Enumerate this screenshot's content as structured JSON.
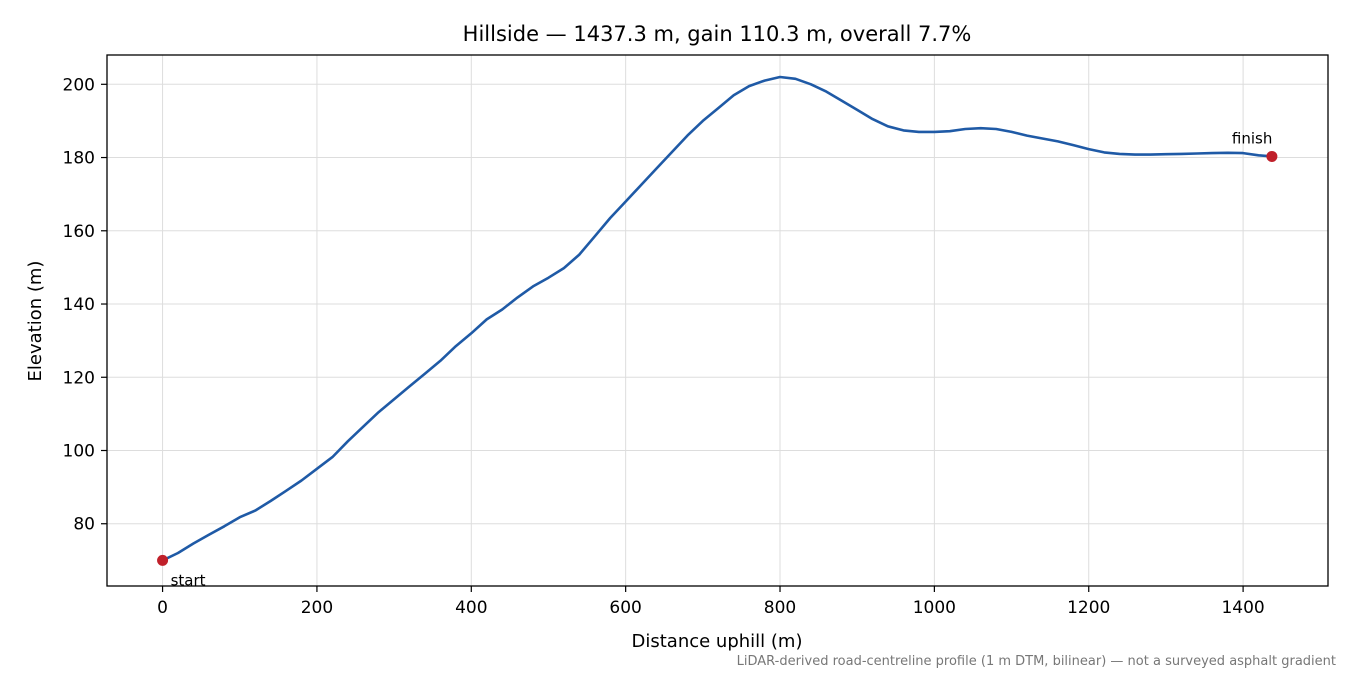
{
  "chart_data": {
    "type": "line",
    "title": "Hillside — 1437.3 m, gain 110.3 m, overall 7.7%",
    "xlabel": "Distance uphill (m)",
    "ylabel": "Elevation (m)",
    "xlim": [
      -72,
      1510
    ],
    "ylim": [
      63,
      208
    ],
    "x_ticks": [
      0,
      200,
      400,
      600,
      800,
      1000,
      1200,
      1400
    ],
    "y_ticks": [
      80,
      100,
      120,
      140,
      160,
      180,
      200
    ],
    "grid": true,
    "series": [
      {
        "color": "#1f5aa6",
        "points": [
          [
            0,
            70
          ],
          [
            20,
            72
          ],
          [
            40,
            74.6
          ],
          [
            60,
            77
          ],
          [
            80,
            79.3
          ],
          [
            100,
            81.8
          ],
          [
            120,
            83.6
          ],
          [
            140,
            86.2
          ],
          [
            160,
            89
          ],
          [
            180,
            91.8
          ],
          [
            200,
            95
          ],
          [
            220,
            98.2
          ],
          [
            240,
            102.5
          ],
          [
            260,
            106.5
          ],
          [
            280,
            110.5
          ],
          [
            300,
            114
          ],
          [
            320,
            117.5
          ],
          [
            340,
            121
          ],
          [
            360,
            124.5
          ],
          [
            380,
            128.5
          ],
          [
            400,
            132
          ],
          [
            420,
            135.8
          ],
          [
            440,
            138.5
          ],
          [
            460,
            141.8
          ],
          [
            480,
            144.8
          ],
          [
            500,
            147.2
          ],
          [
            520,
            149.8
          ],
          [
            540,
            153.5
          ],
          [
            560,
            158.5
          ],
          [
            580,
            163.5
          ],
          [
            600,
            168
          ],
          [
            620,
            172.5
          ],
          [
            640,
            177
          ],
          [
            660,
            181.5
          ],
          [
            680,
            186
          ],
          [
            700,
            190
          ],
          [
            720,
            193.5
          ],
          [
            740,
            197
          ],
          [
            760,
            199.5
          ],
          [
            780,
            201
          ],
          [
            800,
            202
          ],
          [
            820,
            201.5
          ],
          [
            840,
            200
          ],
          [
            860,
            198
          ],
          [
            880,
            195.5
          ],
          [
            900,
            193
          ],
          [
            920,
            190.5
          ],
          [
            940,
            188.5
          ],
          [
            960,
            187.4
          ],
          [
            980,
            187
          ],
          [
            1000,
            187
          ],
          [
            1020,
            187.2
          ],
          [
            1040,
            187.8
          ],
          [
            1060,
            188
          ],
          [
            1080,
            187.8
          ],
          [
            1100,
            187
          ],
          [
            1120,
            186
          ],
          [
            1140,
            185.2
          ],
          [
            1160,
            184.4
          ],
          [
            1180,
            183.4
          ],
          [
            1200,
            182.3
          ],
          [
            1220,
            181.4
          ],
          [
            1240,
            181
          ],
          [
            1260,
            180.8
          ],
          [
            1280,
            180.8
          ],
          [
            1300,
            180.9
          ],
          [
            1320,
            181
          ],
          [
            1340,
            181.1
          ],
          [
            1360,
            181.2
          ],
          [
            1380,
            181.3
          ],
          [
            1400,
            181.2
          ],
          [
            1420,
            180.6
          ],
          [
            1437.3,
            180.3
          ]
        ]
      }
    ],
    "markers": [
      {
        "label": "start",
        "x": 0,
        "y": 70,
        "color": "#c0202a"
      },
      {
        "label": "finish",
        "x": 1437.3,
        "y": 180.3,
        "color": "#c0202a"
      }
    ],
    "footnote": "LiDAR-derived road-centreline profile (1 m DTM, bilinear) — not a surveyed asphalt gradient"
  }
}
